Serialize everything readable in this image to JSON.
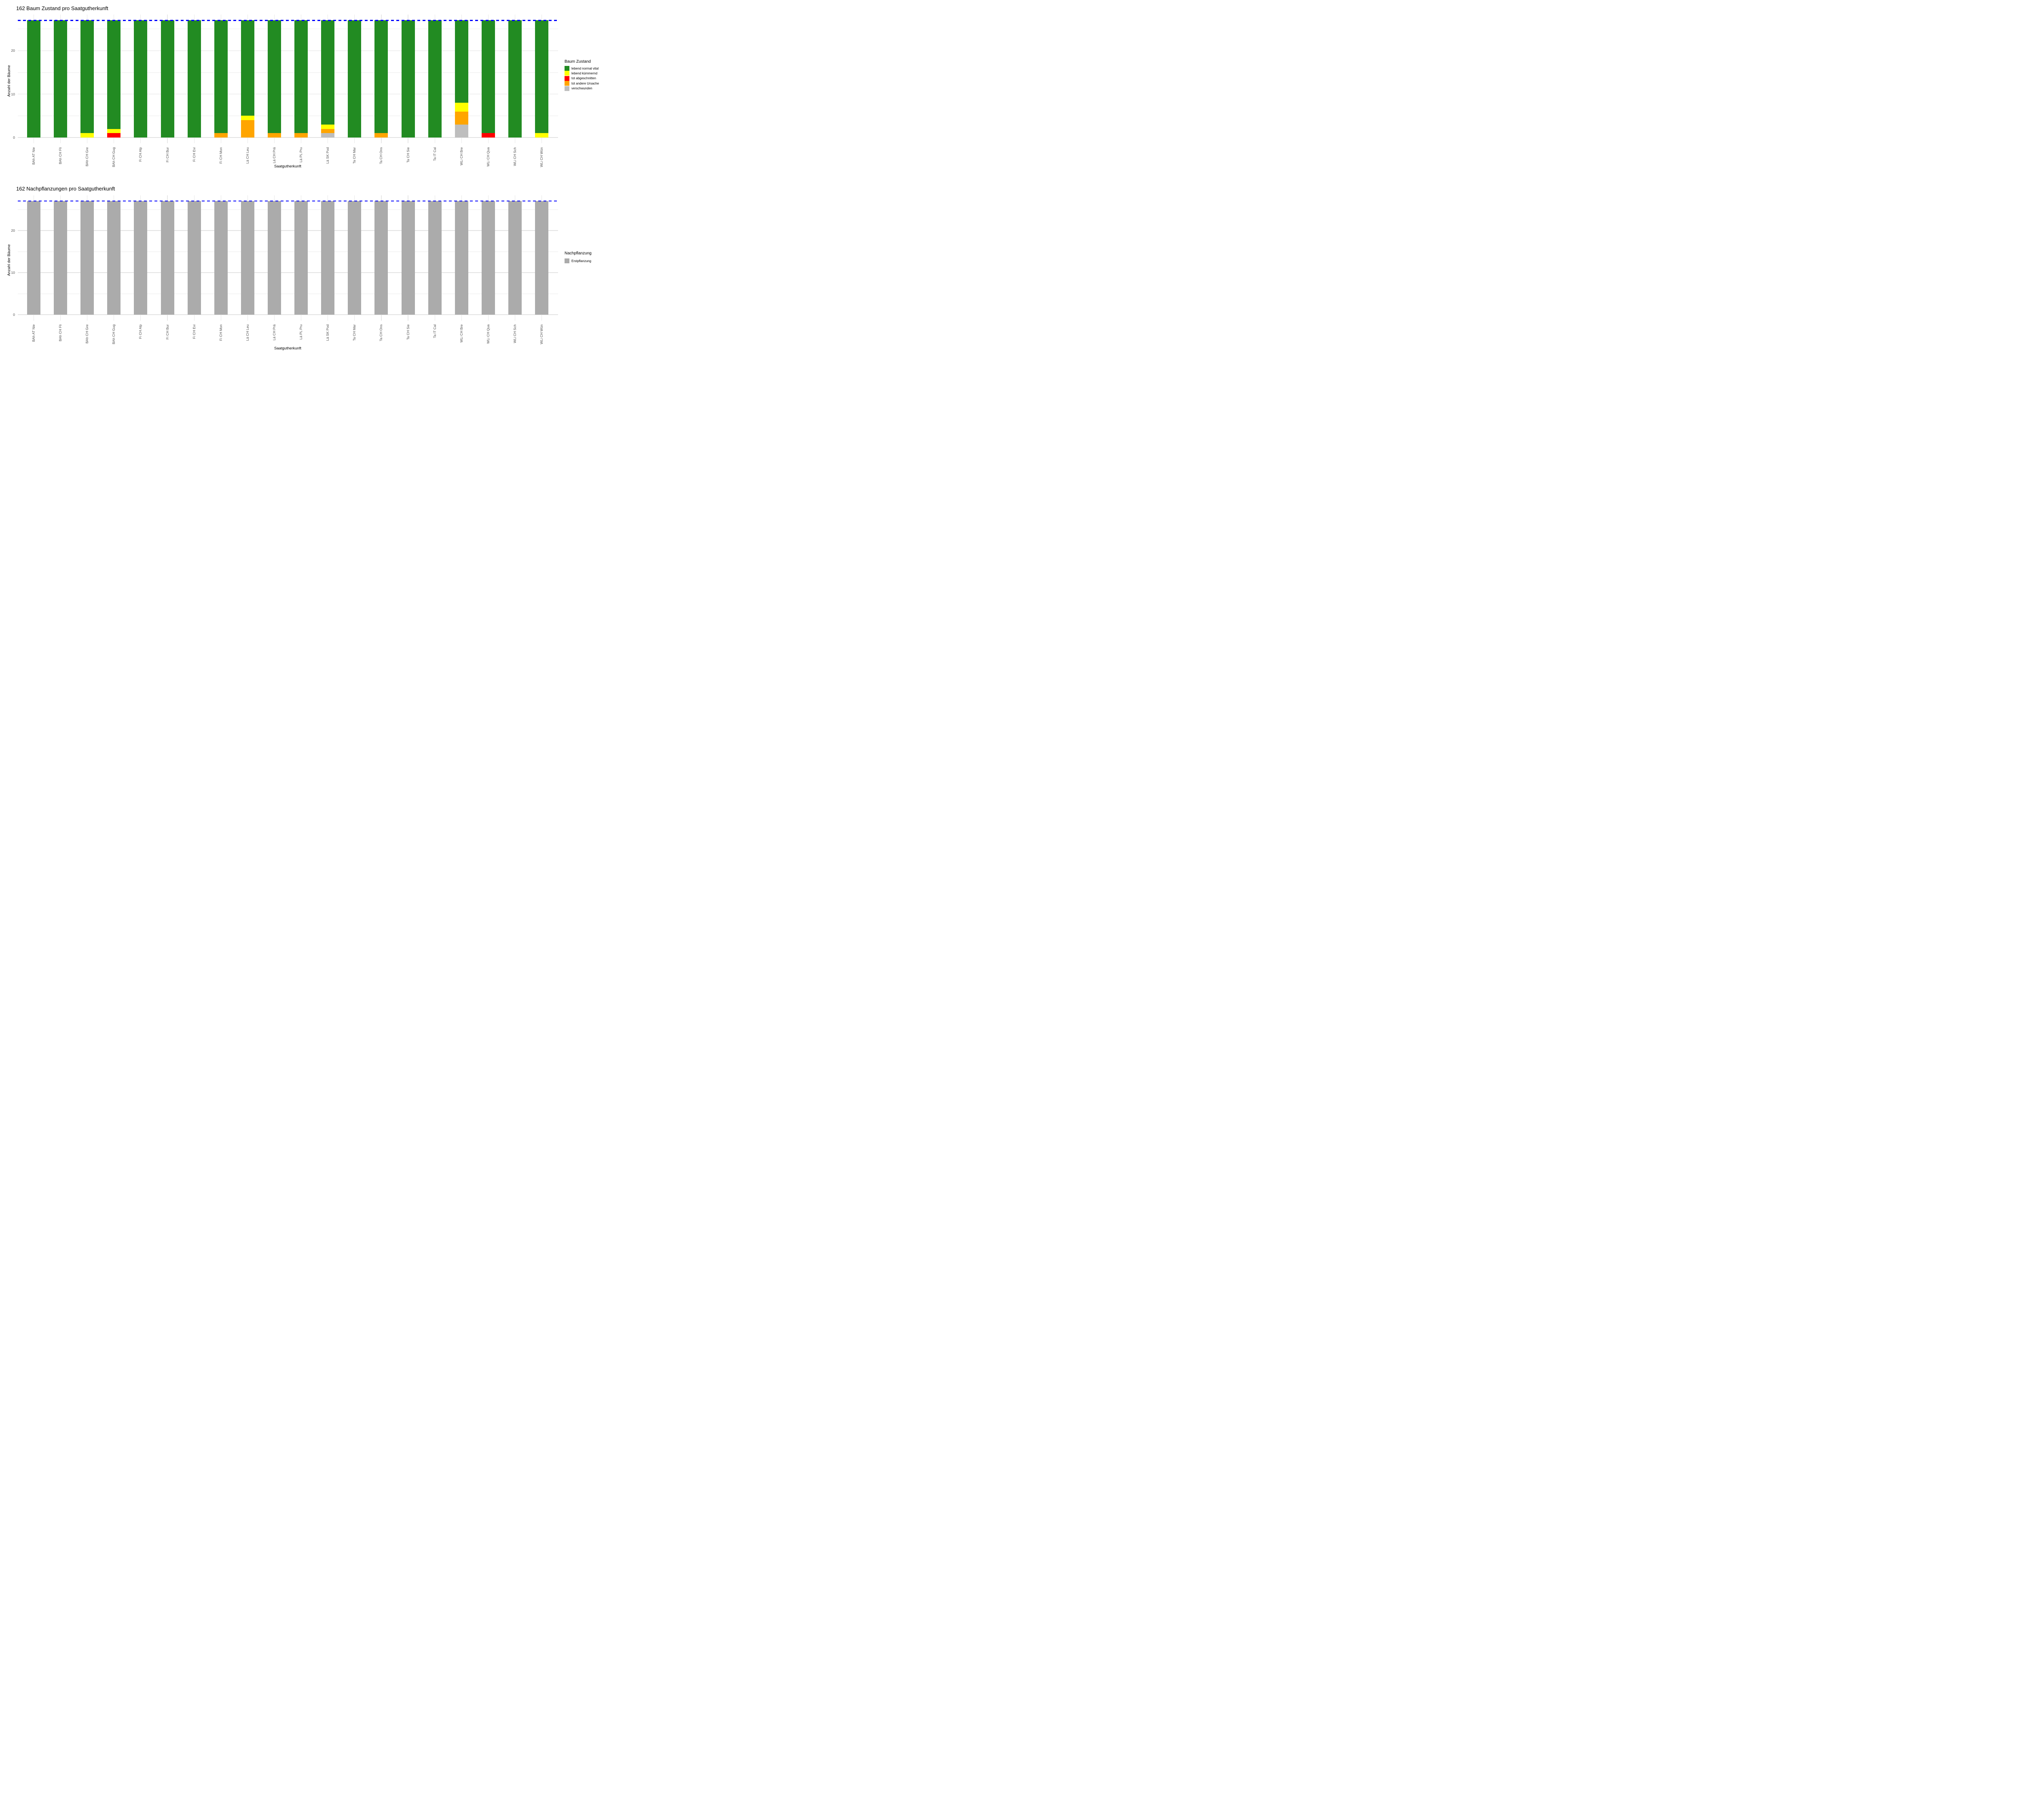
{
  "figure": {
    "background_color": "#FFFFFF",
    "text_color": "#000000",
    "axis_text_color": "#4D4D4D"
  },
  "chart_data": [
    {
      "type": "bar",
      "stacked": true,
      "title": "162 Baum Zustand pro Saatgutherkunft",
      "xlabel": "Saatgutherkunft",
      "ylabel": "Anzahl der Bäume",
      "ylim": [
        0,
        28
      ],
      "y_ticks": [
        0,
        10,
        20
      ],
      "y_minor_gridlines": [
        5,
        15,
        25
      ],
      "grid": true,
      "legend_position": "right",
      "legend_title": "Baum Zustand",
      "reference_line": {
        "value": 27,
        "color": "#0000FF",
        "style": "dashed"
      },
      "categories": [
        "BAh AT Nie",
        "BAh CH Fli",
        "BAh CH Gre",
        "BAh CH Gug",
        "Fi CH Alp",
        "Fi CH Bur",
        "Fi CH Evi",
        "Fi CH Mon",
        "Lä CH Leu",
        "Lä CH Prä",
        "Lä PL Pru",
        "Lä SK Pod",
        "Ta CH Mar",
        "Ta CH Ons",
        "Ta CH Sie",
        "Ta IT Cal",
        "WLi CH Bre",
        "WLi CH Qua",
        "WLi CH Sch",
        "WLi CH Wün"
      ],
      "series": [
        {
          "name": "lebend normal vital",
          "color": "#228B22",
          "values": [
            27,
            27,
            26,
            25,
            27,
            27,
            27,
            26,
            22,
            26,
            26,
            24,
            27,
            26,
            27,
            27,
            19,
            26,
            27,
            26
          ]
        },
        {
          "name": "lebend kümmernd",
          "color": "#FFFF00",
          "values": [
            0,
            0,
            1,
            1,
            0,
            0,
            0,
            0,
            1,
            0,
            0,
            1,
            0,
            0,
            0,
            0,
            2,
            0,
            0,
            1
          ]
        },
        {
          "name": "tot abgeschnitten",
          "color": "#FF0000",
          "values": [
            0,
            0,
            0,
            1,
            0,
            0,
            0,
            0,
            0,
            0,
            0,
            0,
            0,
            0,
            0,
            0,
            0,
            1,
            0,
            0
          ]
        },
        {
          "name": "tot andere Ursache",
          "color": "#FFA500",
          "values": [
            0,
            0,
            0,
            0,
            0,
            0,
            0,
            1,
            4,
            1,
            1,
            1,
            0,
            1,
            0,
            0,
            3,
            0,
            0,
            0
          ]
        },
        {
          "name": "verschwunden",
          "color": "#BEBEBE",
          "values": [
            0,
            0,
            0,
            0,
            0,
            0,
            0,
            0,
            0,
            0,
            0,
            1,
            0,
            0,
            0,
            0,
            3,
            0,
            0,
            0
          ]
        }
      ],
      "stack_order_bottom_to_top": [
        "verschwunden",
        "tot andere Ursache",
        "tot abgeschnitten",
        "lebend kümmernd",
        "lebend normal vital"
      ],
      "bar_total_per_category": 27
    },
    {
      "type": "bar",
      "stacked": true,
      "title": "162 Nachpflanzungen pro Saatgutherkunft",
      "xlabel": "Saatgutherkunft",
      "ylabel": "Anzahl der Bäume",
      "ylim": [
        0,
        28
      ],
      "y_ticks": [
        0,
        10,
        20
      ],
      "y_minor_gridlines": [
        5,
        15,
        25
      ],
      "grid": true,
      "legend_position": "right",
      "legend_title": "Nachpflanzung",
      "reference_line": {
        "value": 27,
        "color": "#0000FF",
        "style": "dashed"
      },
      "categories": [
        "BAh AT Nie",
        "BAh CH Fli",
        "BAh CH Gre",
        "BAh CH Gug",
        "Fi CH Alp",
        "Fi CH Bur",
        "Fi CH Evi",
        "Fi CH Mon",
        "Lä CH Leu",
        "Lä CH Prä",
        "Lä PL Pru",
        "Lä SK Pod",
        "Ta CH Mar",
        "Ta CH Ons",
        "Ta CH Sie",
        "Ta IT Cal",
        "WLi CH Bre",
        "WLi CH Qua",
        "WLi CH Sch",
        "WLi CH Wün"
      ],
      "series": [
        {
          "name": "Erstpflanzung",
          "color": "#ABABAB",
          "values": [
            27,
            27,
            27,
            27,
            27,
            27,
            27,
            27,
            27,
            27,
            27,
            27,
            27,
            27,
            27,
            27,
            27,
            27,
            27,
            27
          ]
        }
      ],
      "stack_order_bottom_to_top": [
        "Erstpflanzung"
      ],
      "bar_total_per_category": 27
    }
  ]
}
